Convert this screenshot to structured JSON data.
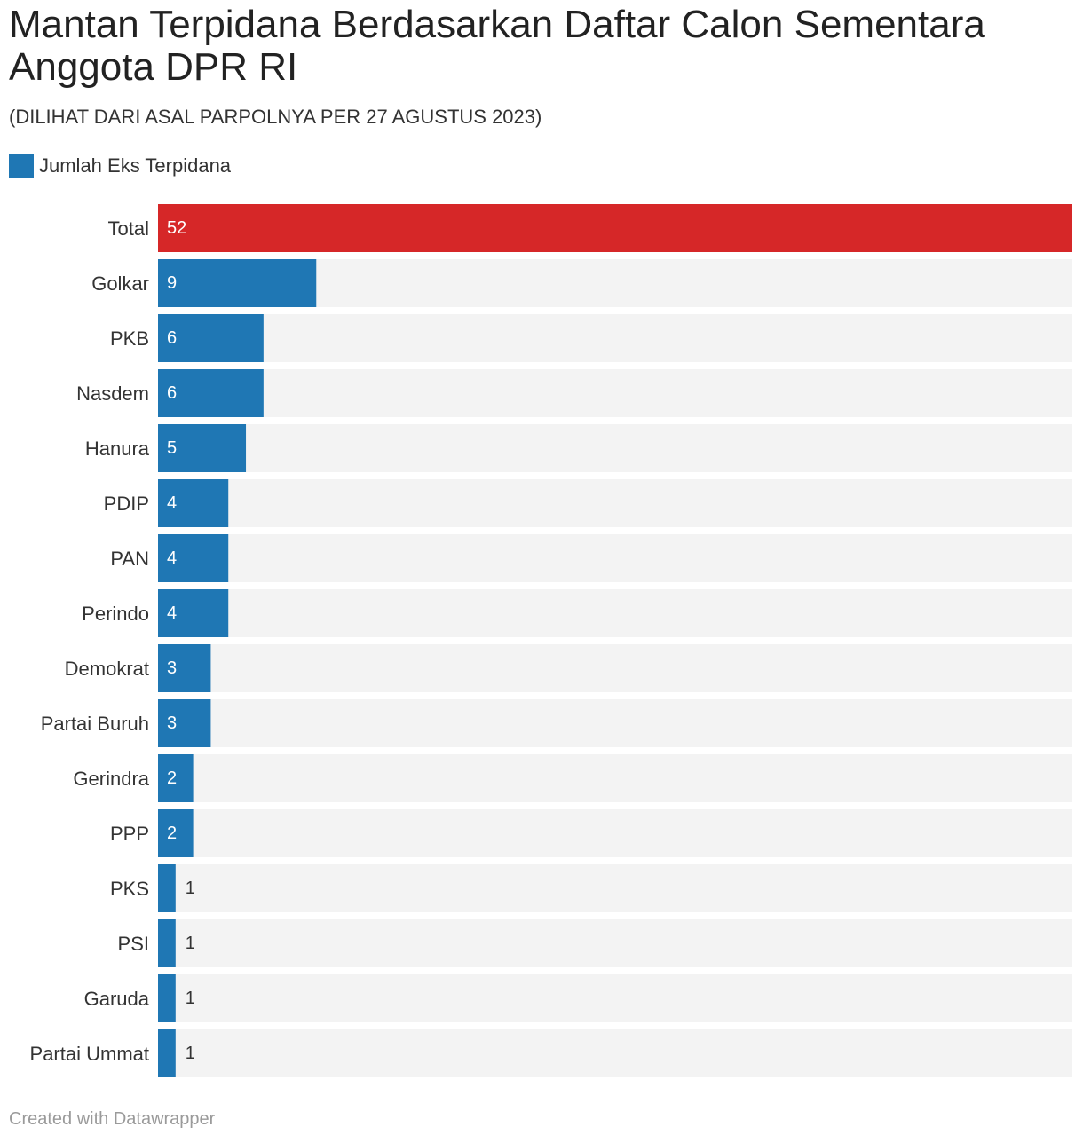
{
  "title": "Mantan Terpidana Berdasarkan Daftar Calon Sementara Anggota DPR RI",
  "subtitle": "(DILIHAT DARI ASAL PARPOLNYA PER 27 AGUSTUS 2023)",
  "legend": {
    "label": "Jumlah Eks Terpidana",
    "color": "#1f77b4"
  },
  "footer": "Created with Datawrapper",
  "chart_data": {
    "type": "bar",
    "orientation": "horizontal",
    "categories": [
      "Total",
      "Golkar",
      "PKB",
      "Nasdem",
      "Hanura",
      "PDIP",
      "PAN",
      "Perindo",
      "Demokrat",
      "Partai Buruh",
      "Gerindra",
      "PPP",
      "PKS",
      "PSI",
      "Garuda",
      "Partai Ummat"
    ],
    "series": [
      {
        "name": "Jumlah Eks Terpidana",
        "values": [
          52,
          9,
          6,
          6,
          5,
          4,
          4,
          4,
          3,
          3,
          2,
          2,
          1,
          1,
          1,
          1
        ]
      }
    ],
    "xlim": [
      0,
      52
    ],
    "colors": {
      "default": "#1f77b4",
      "highlight": "#d62728",
      "track": "#f3f3f3"
    },
    "highlight_category": "Total",
    "grid": false,
    "legend_position": "top-left"
  }
}
